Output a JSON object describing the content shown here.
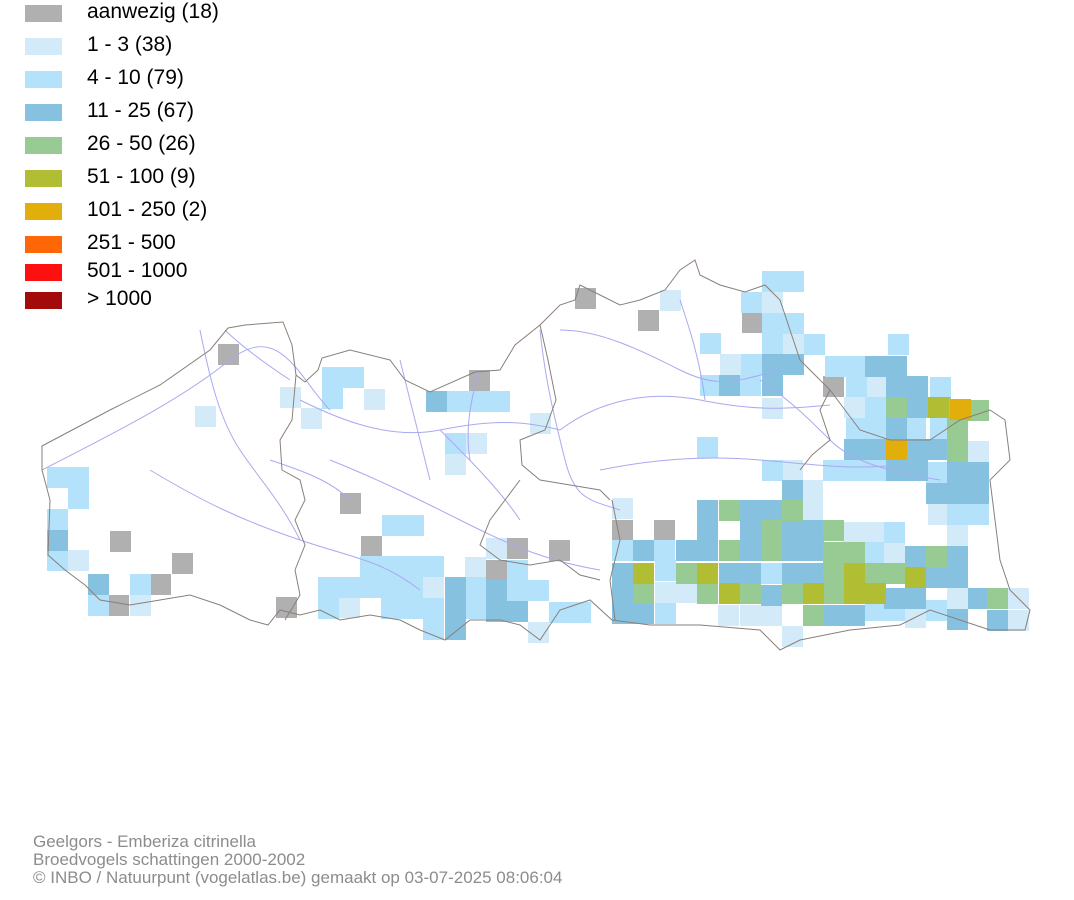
{
  "legend": [
    {
      "label": "aanwezig (18)",
      "color": "#b0b0b0"
    },
    {
      "label": "1 - 3 (38)",
      "color": "#d3ebf9"
    },
    {
      "label": "4 - 10 (79)",
      "color": "#b3e2fa"
    },
    {
      "label": "11 - 25 (67)",
      "color": "#86c2e0"
    },
    {
      "label": "26 - 50 (26)",
      "color": "#98cb93"
    },
    {
      "label": "51 - 100 (9)",
      "color": "#b1bd33"
    },
    {
      "label": "101 - 250 (2)",
      "color": "#e2ae0c"
    },
    {
      "label": "251 - 500",
      "color": "#fd6705"
    },
    {
      "label": "501 - 1000",
      "color": "#ff1010"
    },
    {
      "label": "> 1000",
      "color": "#a30a0a"
    }
  ],
  "colors": {
    "border": "#8a7f7a",
    "rivers": "#a9a9f0"
  },
  "credits": {
    "line1": "Geelgors - Emberiza citrinella",
    "line2": "Broedvogels schattingen 2000-2002",
    "line3": "© INBO / Natuurpunt (vogelatlas.be) gemaakt op 03-07-2025 08:06:04"
  }
}
